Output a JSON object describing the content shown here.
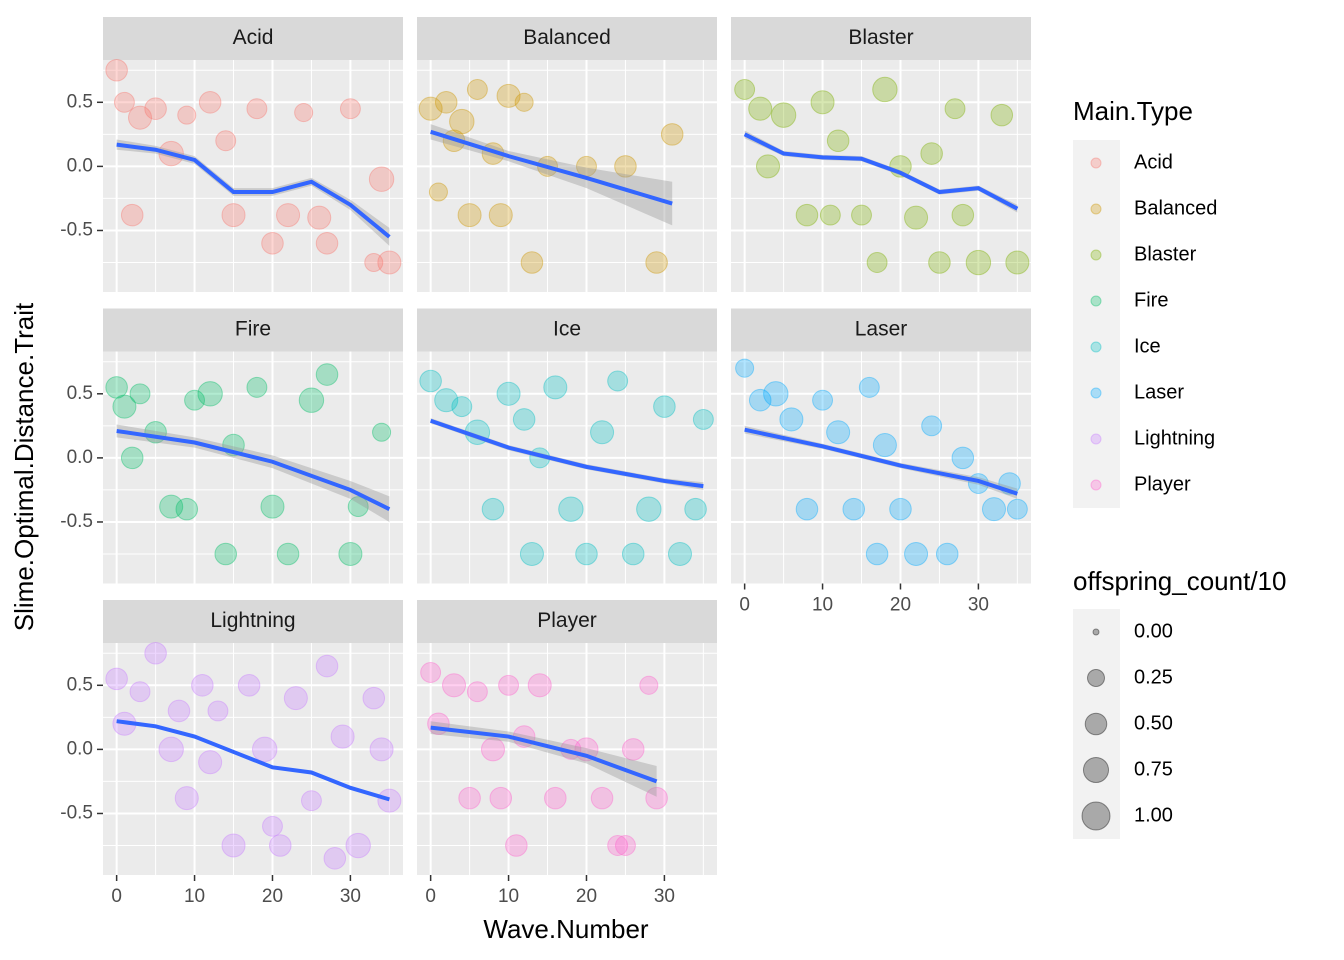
{
  "chart_data": {
    "type": "scatter",
    "x_label": "Wave.Number",
    "y_label": "Slime.Optimal.Distance.Trait",
    "xlim": [
      -1.75,
      36.75
    ],
    "ylim": [
      -0.98,
      0.83
    ],
    "xticks": [
      0,
      10,
      20,
      30
    ],
    "yticks": [
      -0.5,
      {
        "value": 0,
        "label": "0.0"
      },
      0.5
    ],
    "xminor": [
      5,
      15,
      25,
      35
    ],
    "yminor": [
      -0.75,
      -0.25,
      0.25,
      0.75
    ],
    "grid": true,
    "alpha": 0.3,
    "smooth_color": "#3366FF",
    "color_legend_title": "Main.Type",
    "size_legend_title": "offspring_count/10",
    "size_legend": [
      {
        "value": 0,
        "label": "0.00"
      },
      {
        "value": 0.25,
        "label": "0.25"
      },
      {
        "value": 0.5,
        "label": "0.50"
      },
      {
        "value": 0.75,
        "label": "0.75"
      },
      {
        "value": 1,
        "label": "1.00"
      }
    ],
    "series": [
      {
        "name": "Acid",
        "color": "#F8766D",
        "x": [
          0,
          1,
          3,
          5,
          7,
          9,
          12,
          15,
          18,
          20,
          22,
          24,
          27,
          30,
          33,
          35,
          2,
          14,
          26,
          34
        ],
        "y": [
          0.75,
          0.5,
          0.38,
          0.45,
          0.1,
          0.4,
          0.5,
          -0.38,
          0.45,
          -0.6,
          -0.38,
          0.42,
          -0.6,
          0.45,
          -0.75,
          -0.75,
          -0.38,
          0.2,
          -0.4,
          -0.1
        ],
        "size": [
          0.5,
          0.4,
          0.6,
          0.5,
          0.7,
          0.3,
          0.5,
          0.6,
          0.4,
          0.5,
          0.6,
          0.3,
          0.5,
          0.4,
          0.3,
          0.6,
          0.5,
          0.4,
          0.6,
          0.7
        ],
        "smooth": {
          "x": [
            0,
            5,
            10,
            15,
            20,
            25,
            30,
            35
          ],
          "y": [
            0.17,
            0.13,
            0.05,
            -0.2,
            -0.2,
            -0.12,
            -0.3,
            -0.55
          ],
          "lower": [
            0.13,
            0.1,
            0.02,
            -0.23,
            -0.23,
            -0.15,
            -0.34,
            -0.62
          ],
          "upper": [
            0.21,
            0.16,
            0.08,
            -0.17,
            -0.17,
            -0.09,
            -0.26,
            -0.48
          ]
        }
      },
      {
        "name": "Balanced",
        "color": "#CD9600",
        "x": [
          0,
          2,
          4,
          6,
          8,
          10,
          12,
          13,
          15,
          5,
          3,
          20,
          25,
          29,
          31,
          1,
          9
        ],
        "y": [
          0.45,
          0.5,
          0.35,
          0.6,
          0.1,
          0.55,
          0.5,
          -0.75,
          0.0,
          -0.38,
          0.2,
          0.0,
          0.0,
          -0.75,
          0.25,
          -0.2,
          -0.38
        ],
        "size": [
          0.6,
          0.5,
          0.7,
          0.4,
          0.5,
          0.6,
          0.3,
          0.5,
          0.4,
          0.6,
          0.5,
          0.4,
          0.5,
          0.5,
          0.5,
          0.3,
          0.6
        ],
        "smooth": {
          "x": [
            0,
            10,
            20,
            31
          ],
          "y": [
            0.27,
            0.08,
            -0.09,
            -0.29
          ],
          "lower": [
            0.21,
            0.04,
            -0.17,
            -0.46
          ],
          "upper": [
            0.33,
            0.12,
            -0.01,
            -0.12
          ]
        }
      },
      {
        "name": "Blaster",
        "color": "#7CAE00",
        "x": [
          0,
          2,
          5,
          8,
          10,
          12,
          15,
          18,
          20,
          22,
          25,
          27,
          30,
          33,
          35,
          11,
          24,
          3,
          17,
          28
        ],
        "y": [
          0.6,
          0.45,
          0.4,
          -0.38,
          0.5,
          0.2,
          -0.38,
          0.6,
          0.0,
          -0.4,
          -0.75,
          0.45,
          -0.75,
          0.4,
          -0.75,
          -0.38,
          0.1,
          0.0,
          -0.75,
          -0.38
        ],
        "size": [
          0.4,
          0.6,
          0.7,
          0.5,
          0.6,
          0.5,
          0.4,
          0.7,
          0.5,
          0.6,
          0.5,
          0.4,
          0.7,
          0.5,
          0.6,
          0.4,
          0.5,
          0.6,
          0.4,
          0.5
        ],
        "smooth": {
          "x": [
            0,
            5,
            10,
            15,
            20,
            25,
            30,
            35
          ],
          "y": [
            0.25,
            0.1,
            0.07,
            0.06,
            -0.05,
            -0.2,
            -0.17,
            -0.33
          ],
          "lower": [
            0.22,
            0.08,
            0.05,
            0.04,
            -0.07,
            -0.22,
            -0.19,
            -0.36
          ],
          "upper": [
            0.28,
            0.12,
            0.09,
            0.08,
            -0.03,
            -0.18,
            -0.15,
            -0.3
          ]
        }
      },
      {
        "name": "Fire",
        "color": "#00BE67",
        "x": [
          0,
          1,
          3,
          5,
          7,
          10,
          12,
          14,
          15,
          18,
          20,
          22,
          25,
          27,
          30,
          31,
          34,
          2,
          9
        ],
        "y": [
          0.55,
          0.4,
          0.5,
          0.2,
          -0.38,
          0.45,
          0.5,
          -0.75,
          0.1,
          0.55,
          -0.38,
          -0.75,
          0.45,
          0.65,
          -0.75,
          -0.38,
          0.2,
          0.0,
          -0.4
        ],
        "size": [
          0.5,
          0.6,
          0.4,
          0.5,
          0.6,
          0.4,
          0.7,
          0.5,
          0.5,
          0.4,
          0.6,
          0.5,
          0.7,
          0.5,
          0.6,
          0.4,
          0.3,
          0.5,
          0.5
        ],
        "smooth": {
          "x": [
            0,
            10,
            20,
            30,
            35
          ],
          "y": [
            0.21,
            0.12,
            -0.03,
            -0.25,
            -0.4
          ],
          "lower": [
            0.16,
            0.08,
            -0.08,
            -0.32,
            -0.5
          ],
          "upper": [
            0.26,
            0.16,
            0.02,
            -0.18,
            -0.3
          ]
        }
      },
      {
        "name": "Ice",
        "color": "#00BFC4",
        "x": [
          0,
          2,
          4,
          6,
          8,
          10,
          12,
          14,
          16,
          18,
          20,
          22,
          24,
          26,
          28,
          30,
          32,
          34,
          35,
          13
        ],
        "y": [
          0.6,
          0.45,
          0.4,
          0.2,
          -0.4,
          0.5,
          0.3,
          0.0,
          0.55,
          -0.4,
          -0.75,
          0.2,
          0.6,
          -0.75,
          -0.4,
          0.4,
          -0.75,
          -0.4,
          0.3,
          -0.75
        ],
        "size": [
          0.5,
          0.6,
          0.4,
          0.7,
          0.5,
          0.6,
          0.5,
          0.4,
          0.6,
          0.7,
          0.5,
          0.6,
          0.4,
          0.5,
          0.7,
          0.5,
          0.6,
          0.5,
          0.4,
          0.6
        ],
        "smooth": {
          "x": [
            0,
            10,
            20,
            30,
            35
          ],
          "y": [
            0.29,
            0.08,
            -0.07,
            -0.18,
            -0.22
          ],
          "lower": [
            0.27,
            0.06,
            -0.09,
            -0.2,
            -0.25
          ],
          "upper": [
            0.31,
            0.1,
            -0.05,
            -0.16,
            -0.19
          ]
        }
      },
      {
        "name": "Laser",
        "color": "#00A9FF",
        "x": [
          0,
          2,
          4,
          6,
          8,
          10,
          12,
          14,
          16,
          18,
          20,
          22,
          24,
          26,
          28,
          30,
          32,
          34,
          35,
          17
        ],
        "y": [
          0.7,
          0.45,
          0.5,
          0.3,
          -0.4,
          0.45,
          0.2,
          -0.4,
          0.55,
          0.1,
          -0.4,
          -0.75,
          0.25,
          -0.75,
          0.0,
          -0.2,
          -0.4,
          -0.2,
          -0.4,
          -0.75
        ],
        "size": [
          0.3,
          0.5,
          0.7,
          0.6,
          0.5,
          0.4,
          0.6,
          0.5,
          0.4,
          0.6,
          0.5,
          0.6,
          0.4,
          0.5,
          0.5,
          0.4,
          0.6,
          0.5,
          0.4,
          0.5
        ],
        "smooth": {
          "x": [
            0,
            10,
            20,
            30,
            35
          ],
          "y": [
            0.22,
            0.09,
            -0.06,
            -0.18,
            -0.28
          ],
          "lower": [
            0.19,
            0.07,
            -0.08,
            -0.21,
            -0.32
          ],
          "upper": [
            0.25,
            0.11,
            -0.04,
            -0.15,
            -0.24
          ]
        }
      },
      {
        "name": "Lightning",
        "color": "#C77CFF",
        "x": [
          0,
          1,
          3,
          5,
          7,
          9,
          11,
          13,
          15,
          17,
          19,
          21,
          23,
          25,
          27,
          29,
          31,
          33,
          35,
          8,
          12,
          20,
          28,
          34
        ],
        "y": [
          0.55,
          0.2,
          0.45,
          0.75,
          0.0,
          -0.38,
          0.5,
          0.3,
          -0.75,
          0.5,
          0.0,
          -0.75,
          0.4,
          -0.4,
          0.65,
          0.1,
          -0.75,
          0.4,
          -0.4,
          0.3,
          -0.1,
          -0.6,
          -0.85,
          0.0
        ],
        "size": [
          0.5,
          0.6,
          0.4,
          0.5,
          0.7,
          0.6,
          0.5,
          0.4,
          0.6,
          0.5,
          0.7,
          0.5,
          0.6,
          0.4,
          0.5,
          0.6,
          0.7,
          0.5,
          0.6,
          0.5,
          0.6,
          0.4,
          0.5,
          0.6
        ],
        "smooth": {
          "x": [
            0,
            5,
            10,
            15,
            20,
            25,
            30,
            35
          ],
          "y": [
            0.22,
            0.18,
            0.1,
            -0.02,
            -0.14,
            -0.18,
            -0.3,
            -0.39
          ],
          "lower": [
            0.21,
            0.17,
            0.09,
            -0.03,
            -0.15,
            -0.19,
            -0.31,
            -0.4
          ],
          "upper": [
            0.23,
            0.19,
            0.11,
            -0.01,
            -0.13,
            -0.17,
            -0.29,
            -0.38
          ]
        }
      },
      {
        "name": "Player",
        "color": "#FF61CC",
        "x": [
          0,
          1,
          3,
          5,
          6,
          8,
          9,
          10,
          12,
          14,
          16,
          18,
          20,
          22,
          24,
          26,
          28,
          29,
          11,
          25
        ],
        "y": [
          0.6,
          0.2,
          0.5,
          -0.38,
          0.45,
          0.0,
          -0.38,
          0.5,
          0.1,
          0.5,
          -0.38,
          0.0,
          0.0,
          -0.38,
          -0.75,
          0.0,
          0.5,
          -0.38,
          -0.75,
          -0.75
        ],
        "size": [
          0.4,
          0.5,
          0.6,
          0.5,
          0.4,
          0.6,
          0.5,
          0.4,
          0.5,
          0.6,
          0.5,
          0.4,
          0.6,
          0.5,
          0.4,
          0.5,
          0.3,
          0.5,
          0.5,
          0.4
        ],
        "smooth": {
          "x": [
            0,
            10,
            20,
            29
          ],
          "y": [
            0.17,
            0.1,
            -0.05,
            -0.25
          ],
          "lower": [
            0.12,
            0.06,
            -0.11,
            -0.37
          ],
          "upper": [
            0.22,
            0.14,
            0.01,
            -0.13
          ]
        }
      }
    ]
  }
}
